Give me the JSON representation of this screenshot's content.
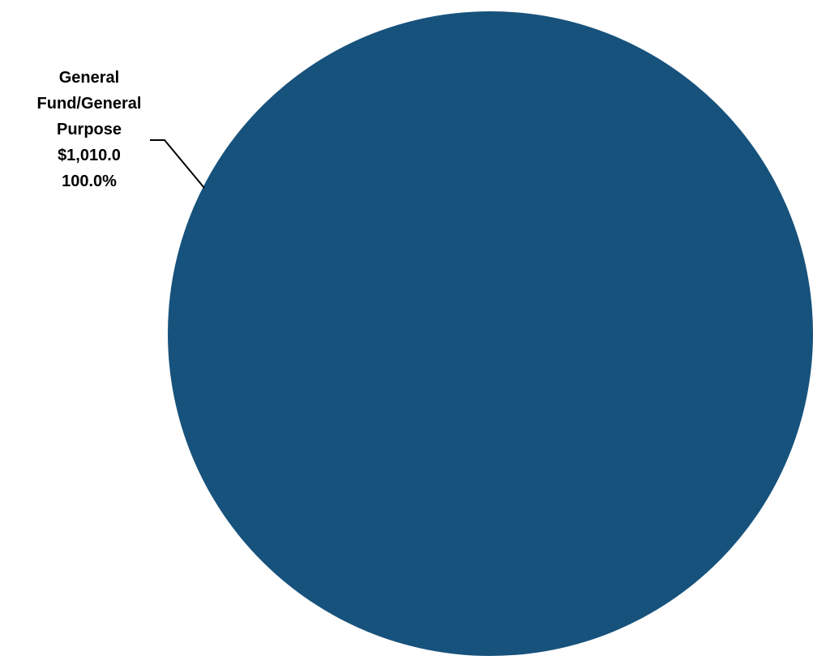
{
  "chart_data": {
    "type": "pie",
    "title": "",
    "slices": [
      {
        "name_lines": [
          "General",
          "Fund/General",
          "Purpose"
        ],
        "amount_label": "$1,010.0",
        "percent_label": "100.0%",
        "value": 1010.0,
        "percent": 100.0,
        "color": "#17527C"
      }
    ],
    "leader_line_color": "#000000"
  }
}
